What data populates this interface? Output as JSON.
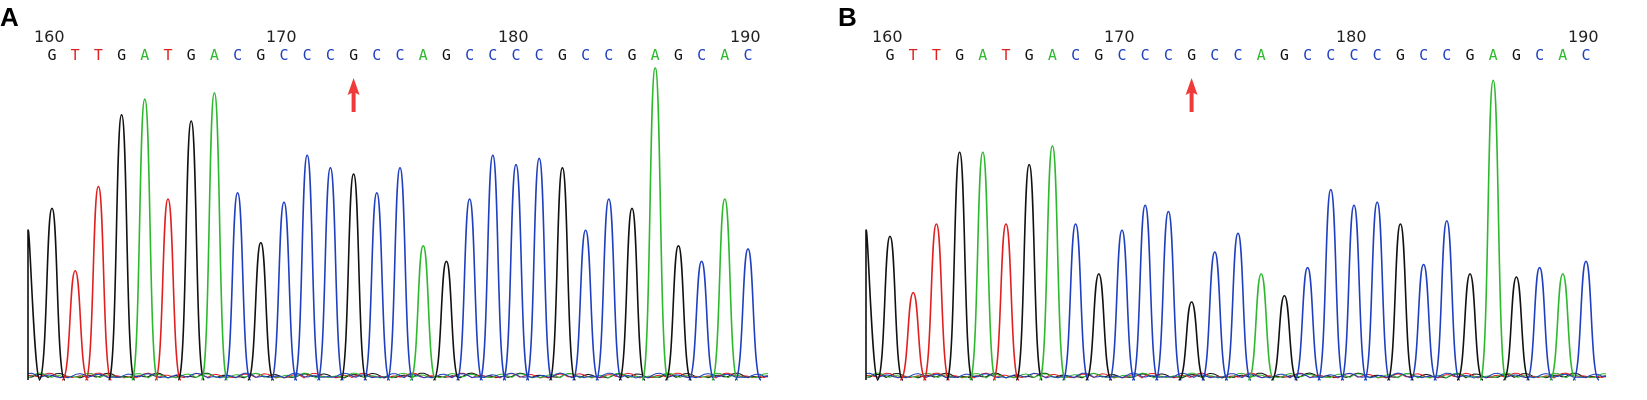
{
  "colors": {
    "A": "#2eb82e",
    "C": "#1f3fbf",
    "G": "#111111",
    "T": "#e02020",
    "arrow": "#f03a3a"
  },
  "panels": [
    {
      "label": "A",
      "positions": [
        "160",
        "170",
        "180",
        "190"
      ],
      "bases": [
        "G",
        "T",
        "T",
        "G",
        "A",
        "T",
        "G",
        "A",
        "C",
        "G",
        "C",
        "C",
        "C",
        "G",
        "C",
        "C",
        "A",
        "G",
        "C",
        "C",
        "C",
        "C",
        "G",
        "C",
        "C",
        "G",
        "A",
        "G",
        "C",
        "A",
        "C"
      ],
      "arrow_index": 13,
      "peak_heights": [
        0.55,
        0.35,
        0.62,
        0.85,
        0.9,
        0.58,
        0.83,
        0.92,
        0.6,
        0.44,
        0.57,
        0.72,
        0.68,
        0.66,
        0.6,
        0.68,
        0.43,
        0.38,
        0.58,
        0.72,
        0.69,
        0.71,
        0.68,
        0.48,
        0.58,
        0.55,
        1.0,
        0.43,
        0.38,
        0.58,
        0.42
      ]
    },
    {
      "label": "B",
      "positions": [
        "160",
        "170",
        "180",
        "190"
      ],
      "bases": [
        "G",
        "T",
        "T",
        "G",
        "A",
        "T",
        "G",
        "A",
        "C",
        "G",
        "C",
        "C",
        "C",
        "G",
        "C",
        "C",
        "A",
        "G",
        "C",
        "C",
        "C",
        "C",
        "G",
        "C",
        "C",
        "G",
        "A",
        "G",
        "C",
        "A",
        "C"
      ],
      "arrow_index": 13,
      "peak_heights": [
        0.46,
        0.28,
        0.5,
        0.73,
        0.73,
        0.5,
        0.69,
        0.75,
        0.5,
        0.34,
        0.48,
        0.56,
        0.54,
        0.25,
        0.41,
        0.47,
        0.34,
        0.27,
        0.36,
        0.61,
        0.56,
        0.57,
        0.5,
        0.37,
        0.51,
        0.34,
        0.96,
        0.33,
        0.36,
        0.34,
        0.38
      ]
    }
  ]
}
